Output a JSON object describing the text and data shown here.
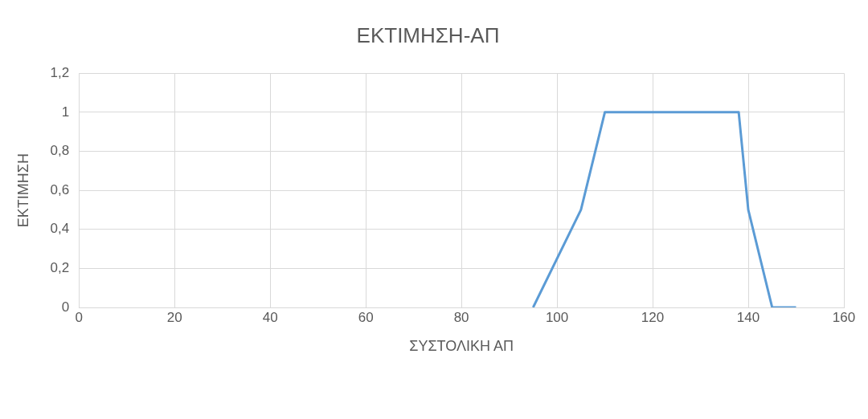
{
  "chart_data": {
    "type": "line",
    "title": "ΕΚΤΙΜΗΣΗ-ΑΠ",
    "xlabel": "ΣΥΣΤΟΛΙΚΗ ΑΠ",
    "ylabel": "ΕΚΤΙΜΗΣΗ",
    "x": [
      95,
      105,
      110,
      138,
      140,
      145,
      150
    ],
    "series": [
      {
        "color": "#5b9bd5",
        "values": [
          0,
          0.5,
          1,
          1,
          0.5,
          0,
          0
        ]
      }
    ],
    "xlim": [
      0,
      160
    ],
    "xticks": [
      0,
      20,
      40,
      60,
      80,
      100,
      120,
      140,
      160
    ],
    "ylim": [
      0,
      1.2
    ],
    "yticks": [
      {
        "value": 0,
        "label": "0"
      },
      {
        "value": 0.2,
        "label": "0,2"
      },
      {
        "value": 0.4,
        "label": "0,4"
      },
      {
        "value": 0.6,
        "label": "0,6"
      },
      {
        "value": 0.8,
        "label": "0,8"
      },
      {
        "value": 1,
        "label": "1"
      },
      {
        "value": 1.2,
        "label": "1,2"
      }
    ],
    "grid": true,
    "legend": false,
    "marker": "none",
    "line_style": "solid"
  }
}
